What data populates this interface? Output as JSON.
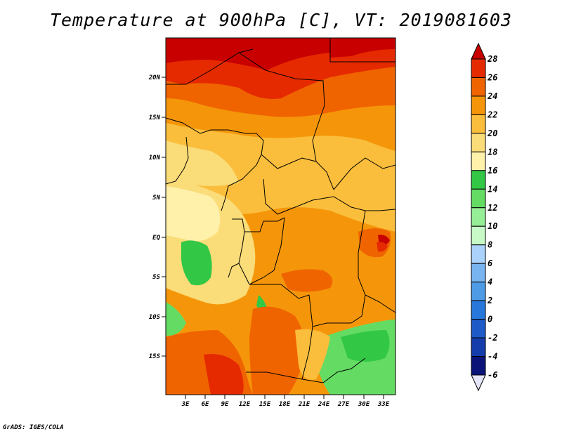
{
  "title": "Temperature at 900hPa [C], VT: 2019081603",
  "credit": "GrADS: IGES/COLA",
  "map": {
    "variable": "Temperature",
    "level": "900hPa",
    "units": "C",
    "valid_time": "2019081603",
    "lon_labels": [
      "3E",
      "6E",
      "9E",
      "12E",
      "15E",
      "18E",
      "21E",
      "24E",
      "27E",
      "30E",
      "33E"
    ],
    "lat_labels": [
      "20N",
      "15N",
      "10N",
      "5N",
      "EQ",
      "5S",
      "10S",
      "15S"
    ]
  },
  "colorbar": {
    "levels": [
      "28",
      "26",
      "24",
      "22",
      "20",
      "18",
      "16",
      "14",
      "12",
      "10",
      "8",
      "6",
      "4",
      "2",
      "0",
      "-2",
      "-4",
      "-6"
    ],
    "colors": [
      "#c80000",
      "#e62a00",
      "#f06400",
      "#f5960a",
      "#fabe3c",
      "#fadc78",
      "#fff0aa",
      "#32c846",
      "#64dc64",
      "#96ee96",
      "#c8fac8",
      "#aad2fa",
      "#78b4f0",
      "#509be6",
      "#2878dc",
      "#1e5ac8",
      "#143caa",
      "#0a1478",
      "#e6e6fa"
    ]
  }
}
